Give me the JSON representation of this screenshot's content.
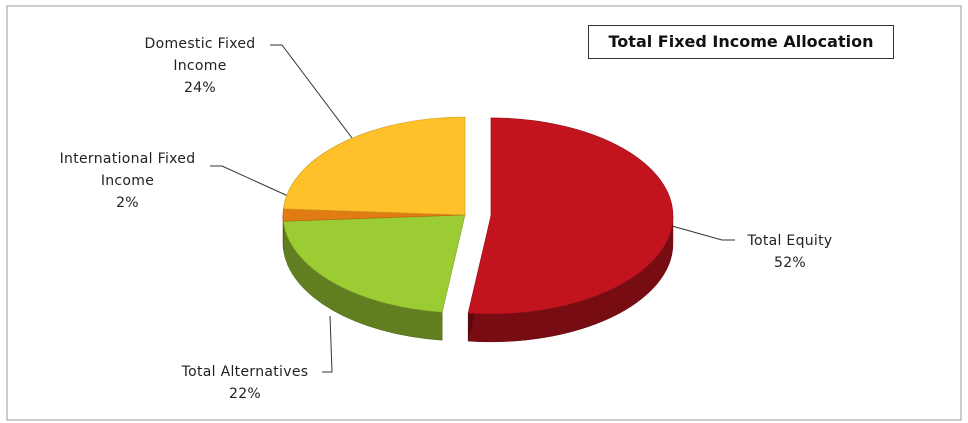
{
  "chart_data": {
    "type": "pie",
    "title": "Total Fixed Income Allocation",
    "categories": [
      "Total Equity",
      "Total Alternatives",
      "International Fixed Income",
      "Domestic Fixed Income"
    ],
    "values": [
      52,
      22,
      2,
      24
    ],
    "value_labels": [
      "52%",
      "22%",
      "2%",
      "24%"
    ],
    "colors": [
      "#c2141f",
      "#9ccc34",
      "#e07c12",
      "#ffc12a"
    ],
    "exploded": [
      true,
      false,
      false,
      false
    ]
  }
}
